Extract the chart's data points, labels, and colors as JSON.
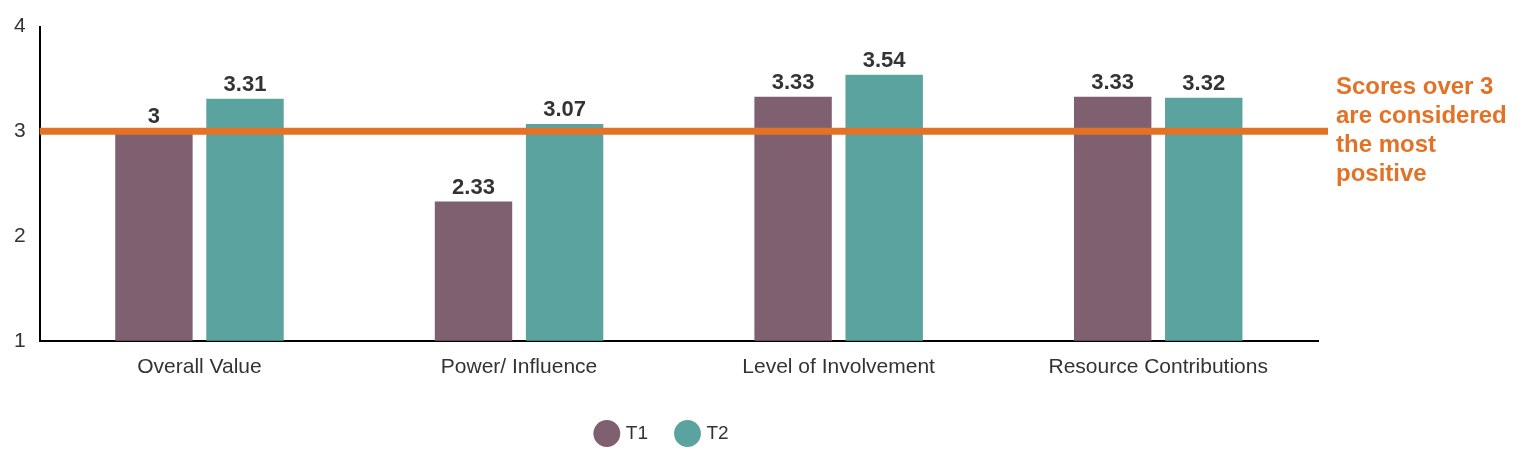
{
  "chart_data": {
    "type": "bar",
    "categories": [
      "Overall Value",
      "Power/ Influence",
      "Level of Involvement",
      "Resource Contributions"
    ],
    "series": [
      {
        "name": "T1",
        "color": "#7f6070",
        "values": [
          3,
          2.33,
          3.33,
          3.33
        ]
      },
      {
        "name": "T2",
        "color": "#5ba39f",
        "values": [
          3.31,
          3.07,
          3.54,
          3.32
        ]
      }
    ],
    "ylim": [
      1,
      4
    ],
    "yticks": [
      1,
      2,
      3,
      4
    ],
    "legend": "bottom",
    "data_labels": true,
    "ref_lines": [
      {
        "axis": "y",
        "value": 3,
        "label": "Scores over 3 are considered the most positive",
        "color": "#e37226"
      }
    ]
  }
}
